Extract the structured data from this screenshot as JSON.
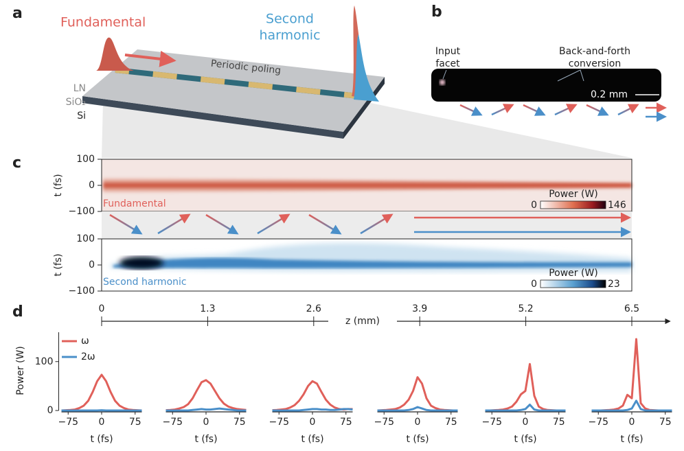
{
  "panel_labels": [
    "a",
    "b",
    "c",
    "d"
  ],
  "panel_a": {
    "fundamental": "Fundamental",
    "second_harmonic": [
      "Second",
      "harmonic"
    ],
    "poling": "Periodic poling",
    "layers": [
      "LN",
      "SiO₂",
      "Si"
    ]
  },
  "panel_b": {
    "input_facet": [
      "Input",
      "facet"
    ],
    "conversion": [
      "Back-and-forth",
      "conversion"
    ],
    "scale_bar": "0.2 mm"
  },
  "panel_c": {
    "y_label": "t (fs)",
    "ylim": [
      -100,
      100
    ],
    "yticks": [
      100,
      0,
      {
        "value": -100,
        "label": "−100"
      }
    ],
    "heatmaps": [
      {
        "label": "Fundamental",
        "colorbar_title": "Power (W)",
        "colorbar_range": [
          0,
          146
        ]
      },
      {
        "label": "Second harmonic",
        "colorbar_title": "Power (W)",
        "colorbar_range": [
          0,
          23
        ]
      }
    ],
    "z_label": "z (mm)",
    "zlim": [
      0,
      6.5
    ],
    "zticks": [
      0,
      1.3,
      2.6,
      3.9,
      5.2,
      6.5
    ]
  },
  "chart_data": [
    {
      "type": "line",
      "y_label": "Power (W)",
      "x_label": "t (fs)",
      "x": [
        -90,
        -80,
        -70,
        -60,
        -50,
        -40,
        -30,
        -20,
        -10,
        0,
        10,
        20,
        30,
        40,
        50,
        60,
        70,
        80,
        90
      ],
      "series": [
        {
          "name": "ω",
          "color": "#e0605a",
          "values": [
            0,
            0.5,
            1,
            2,
            5,
            10,
            20,
            38,
            60,
            73,
            60,
            38,
            20,
            10,
            5,
            2,
            1,
            0.5,
            0
          ]
        },
        {
          "name": "2ω",
          "color": "#4a8fc9",
          "values": [
            0,
            0,
            0,
            0,
            0,
            0,
            0,
            0,
            0,
            0.5,
            0,
            0,
            0,
            0,
            0,
            0,
            0,
            0,
            0
          ]
        }
      ],
      "xlim": [
        -90,
        90
      ],
      "xticks": [
        {
          "value": -75,
          "label": "−75"
        },
        0,
        75
      ],
      "ylim": [
        0,
        160
      ],
      "yticks": [
        0,
        100
      ]
    },
    {
      "type": "line",
      "x_label": "t (fs)",
      "x": [
        -90,
        -80,
        -70,
        -60,
        -50,
        -40,
        -30,
        -20,
        -10,
        0,
        10,
        20,
        30,
        40,
        50,
        60,
        70,
        80,
        90
      ],
      "series": [
        {
          "color": "#e0605a",
          "values": [
            0.5,
            1,
            2,
            4,
            7,
            13,
            25,
            42,
            58,
            62,
            55,
            40,
            25,
            14,
            8,
            5,
            3,
            2,
            1
          ]
        },
        {
          "color": "#4a8fc9",
          "values": [
            0,
            0,
            0,
            0,
            0,
            0,
            1,
            2,
            3,
            2,
            2,
            3,
            4,
            3,
            2,
            1,
            0,
            0,
            0
          ]
        }
      ],
      "xlim": [
        -90,
        90
      ],
      "xticks": [
        {
          "value": -75,
          "label": "−75"
        },
        0,
        75
      ],
      "ylim": [
        0,
        160
      ]
    },
    {
      "type": "line",
      "x_label": "t (fs)",
      "x": [
        -90,
        -80,
        -70,
        -60,
        -50,
        -40,
        -30,
        -20,
        -10,
        0,
        10,
        20,
        30,
        40,
        50,
        60,
        70,
        80,
        90
      ],
      "series": [
        {
          "color": "#e0605a",
          "values": [
            0.5,
            1,
            2,
            3,
            6,
            11,
            20,
            33,
            50,
            60,
            55,
            38,
            22,
            12,
            6,
            3,
            2,
            3,
            3
          ]
        },
        {
          "color": "#4a8fc9",
          "values": [
            0,
            0,
            0,
            0,
            0,
            0,
            0,
            1,
            2,
            3,
            3,
            2,
            2,
            1,
            1,
            2,
            3,
            3,
            2
          ]
        }
      ],
      "xlim": [
        -90,
        90
      ],
      "xticks": [
        {
          "value": -75,
          "label": "−75"
        },
        0,
        75
      ],
      "ylim": [
        0,
        160
      ]
    },
    {
      "type": "line",
      "x_label": "t (fs)",
      "x": [
        -90,
        -80,
        -70,
        -60,
        -50,
        -40,
        -30,
        -20,
        -10,
        0,
        10,
        20,
        30,
        40,
        50,
        60,
        70,
        80,
        90
      ],
      "series": [
        {
          "color": "#e0605a",
          "values": [
            0,
            0.5,
            1,
            2,
            3,
            6,
            12,
            22,
            40,
            68,
            55,
            25,
            10,
            5,
            2,
            1,
            0.5,
            0,
            0
          ]
        },
        {
          "color": "#4a8fc9",
          "values": [
            0,
            0,
            0,
            0,
            0,
            0,
            0,
            1,
            3,
            7,
            4,
            1,
            0,
            0,
            0,
            0,
            0,
            0,
            0
          ]
        }
      ],
      "xlim": [
        -90,
        90
      ],
      "xticks": [
        {
          "value": -75,
          "label": "−75"
        },
        0,
        75
      ],
      "ylim": [
        0,
        160
      ]
    },
    {
      "type": "line",
      "x_label": "t (fs)",
      "x": [
        -90,
        -80,
        -70,
        -60,
        -50,
        -40,
        -30,
        -20,
        -10,
        0,
        10,
        20,
        30,
        40,
        50,
        60,
        70,
        80,
        90
      ],
      "series": [
        {
          "color": "#e0605a",
          "values": [
            0,
            0,
            0.5,
            1,
            2,
            4,
            8,
            18,
            33,
            40,
            95,
            30,
            8,
            3,
            1,
            0.5,
            0,
            0,
            0
          ]
        },
        {
          "color": "#4a8fc9",
          "values": [
            0,
            0,
            0,
            0,
            0,
            0,
            0,
            0,
            1,
            3,
            12,
            2,
            0,
            0,
            0,
            0,
            0,
            0,
            0
          ]
        }
      ],
      "xlim": [
        -90,
        90
      ],
      "xticks": [
        {
          "value": -75,
          "label": "−75"
        },
        0,
        75
      ],
      "ylim": [
        0,
        160
      ]
    },
    {
      "type": "line",
      "x_label": "t (fs)",
      "x": [
        -90,
        -80,
        -70,
        -60,
        -50,
        -40,
        -30,
        -20,
        -10,
        0,
        10,
        20,
        30,
        40,
        50,
        60,
        70,
        80,
        90
      ],
      "series": [
        {
          "color": "#e0605a",
          "values": [
            0,
            0,
            0,
            0.5,
            1,
            2,
            4,
            10,
            32,
            25,
            146,
            15,
            4,
            1,
            0.5,
            0,
            0,
            0,
            0
          ]
        },
        {
          "color": "#4a8fc9",
          "values": [
            0,
            0,
            0,
            0,
            0,
            0,
            0,
            0,
            1,
            4,
            20,
            3,
            0,
            0,
            0,
            0,
            0,
            0,
            0
          ]
        }
      ],
      "xlim": [
        -90,
        90
      ],
      "xticks": [
        {
          "value": -75,
          "label": "−75"
        },
        0,
        75
      ],
      "ylim": [
        0,
        160
      ]
    }
  ]
}
